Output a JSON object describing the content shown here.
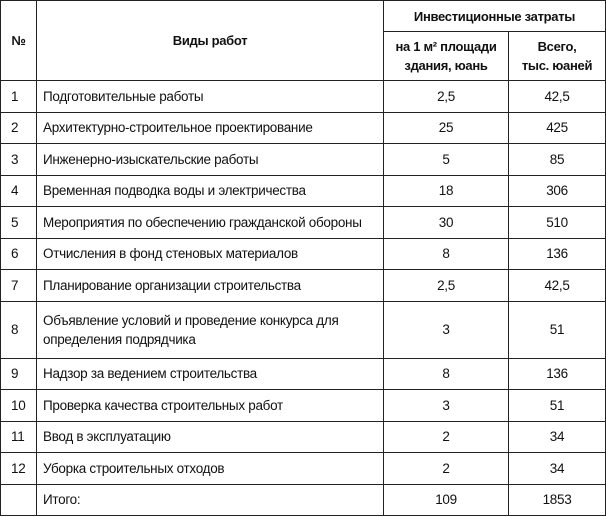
{
  "headers": {
    "num": "№",
    "work": "Виды работ",
    "group": "Инвестиционные затраты",
    "per_m2_line1": "на 1 м² площади",
    "per_m2_line2": "здания, юань",
    "total_line1": "Всего,",
    "total_line2": "тыс. юаней"
  },
  "rows": [
    {
      "num": "1",
      "work": "Подготовительные работы",
      "per_m2": "2,5",
      "total": "42,5"
    },
    {
      "num": "2",
      "work": "Архитектурно-строительное проектирование",
      "per_m2": "25",
      "total": "425"
    },
    {
      "num": "3",
      "work": "Инженерно-изыскательские работы",
      "per_m2": "5",
      "total": "85"
    },
    {
      "num": "4",
      "work": "Временная подводка воды и электричества",
      "per_m2": "18",
      "total": "306"
    },
    {
      "num": "5",
      "work": "Мероприятия по обеспечению гражданской обороны",
      "per_m2": "30",
      "total": "510"
    },
    {
      "num": "6",
      "work": "Отчисления в фонд стеновых материалов",
      "per_m2": "8",
      "total": "136"
    },
    {
      "num": "7",
      "work": "Планирование организации строительства",
      "per_m2": "2,5",
      "total": "42,5"
    },
    {
      "num": "8",
      "work": "Объявление условий и проведение конкурса для определения подрядчика",
      "per_m2": "3",
      "total": "51"
    },
    {
      "num": "9",
      "work": "Надзор за ведением строительства",
      "per_m2": "8",
      "total": "136"
    },
    {
      "num": "10",
      "work": "Проверка качества строительных работ",
      "per_m2": "3",
      "total": "51"
    },
    {
      "num": "11",
      "work": "Ввод в эксплуатацию",
      "per_m2": "2",
      "total": "34"
    },
    {
      "num": "12",
      "work": "Уборка строительных отходов",
      "per_m2": "2",
      "total": "34"
    }
  ],
  "footer": {
    "num": "",
    "work": "Итого:",
    "per_m2": "109",
    "total": "1853"
  }
}
